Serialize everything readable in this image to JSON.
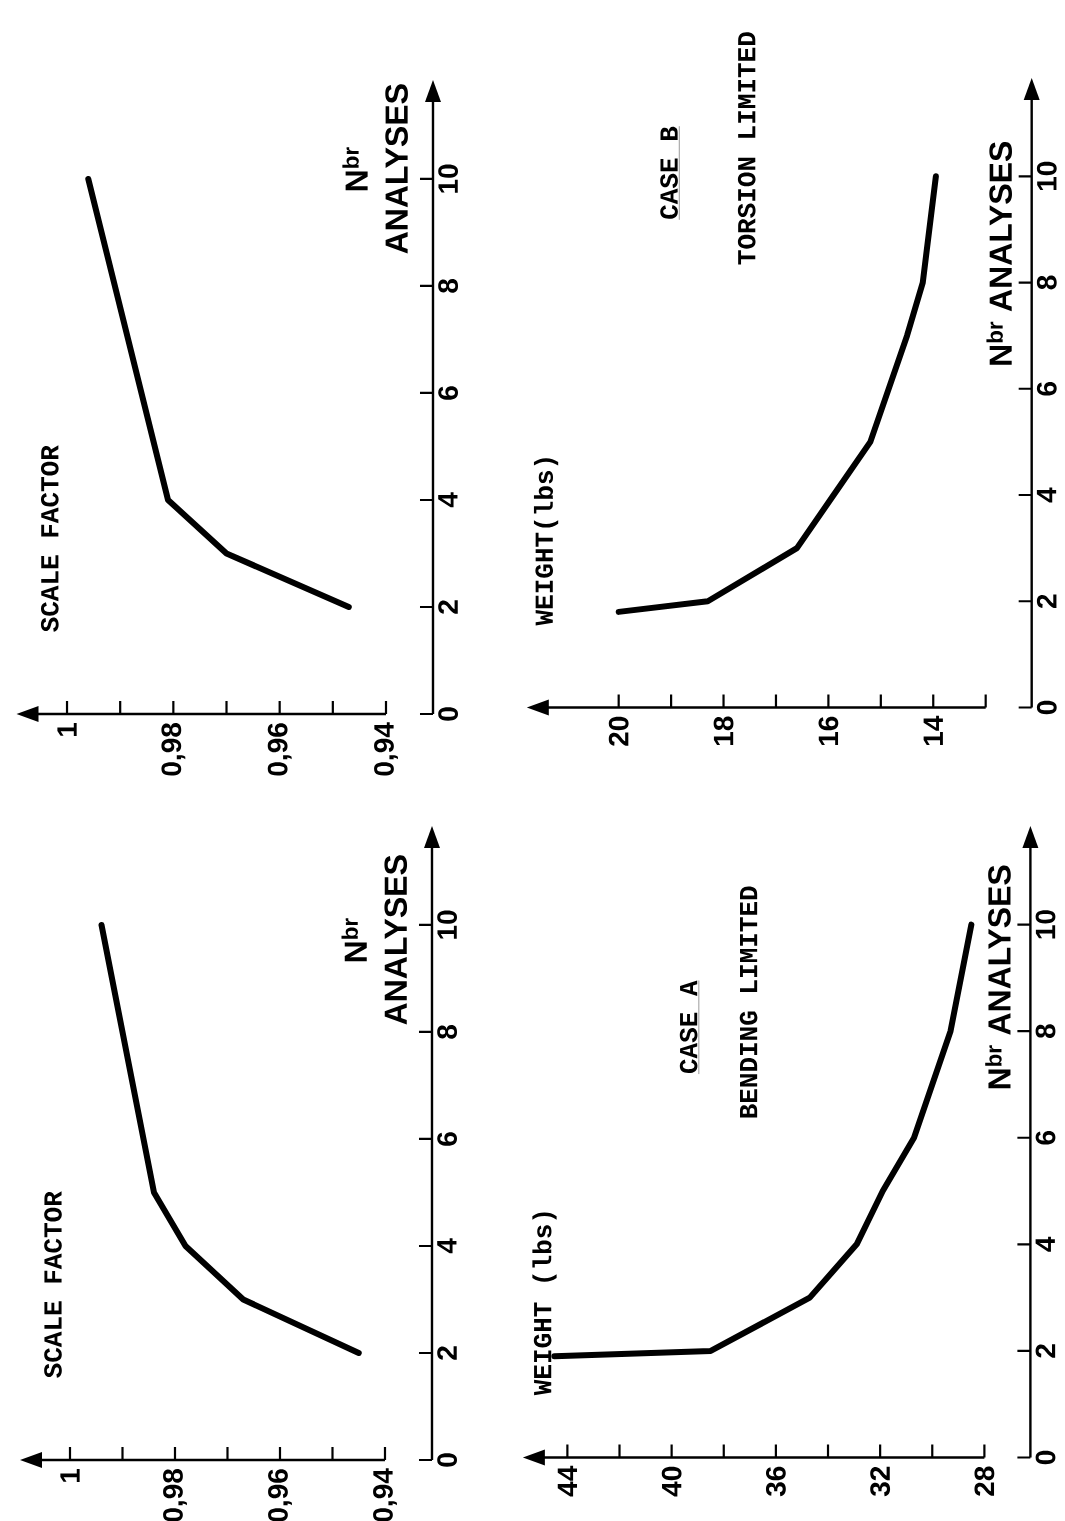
{
  "chart_data": [
    {
      "type": "line",
      "annotations": [
        "SCALE FACTOR"
      ],
      "ylabel": "N$^{br}$ ANALYSES",
      "x": [
        0.947,
        0.97,
        0.981,
        0.996
      ],
      "values": [
        2,
        3,
        4,
        10
      ],
      "color": "#000000",
      "ylim": [
        0,
        11.7
      ],
      "xlim": [
        1.008,
        0.94
      ],
      "yticks": [
        0,
        2,
        4,
        6,
        8,
        10
      ],
      "xticks": [
        {
          "value": 0.94,
          "label": "0,94"
        },
        {
          "value": 0.95,
          "label": null
        },
        {
          "value": 0.96,
          "label": "0,96"
        },
        {
          "value": 0.97,
          "label": null
        },
        {
          "value": 0.98,
          "label": "0,98"
        },
        {
          "value": 0.99,
          "label": null
        },
        1
      ]
    },
    {
      "type": "line",
      "ylabel": "N$^{br}$ ANALYSES",
      "annotations": [
        "WEIGHT(lbs)",
        "CASE B",
        "TORSION LIMITED"
      ],
      "x": [
        20.0,
        18.3,
        16.6,
        15.9,
        15.2,
        14.85,
        14.5,
        14.2,
        13.95
      ],
      "values": [
        1.8,
        2,
        3,
        4,
        5,
        6,
        7,
        8,
        10
      ],
      "color": "#000000",
      "ylim": [
        0,
        11.7
      ],
      "xlim": [
        21.6,
        13
      ],
      "yticks": [
        0,
        2,
        4,
        6,
        8,
        10
      ],
      "xticks": [
        {
          "value": 13,
          "label": null
        },
        14,
        {
          "value": 15,
          "label": null
        },
        16,
        {
          "value": 17,
          "label": null
        },
        18,
        {
          "value": 19,
          "label": null
        },
        20
      ]
    },
    {
      "type": "line",
      "annotations": [
        "SCALE FACTOR"
      ],
      "ylabel": "N$^{br}$ ANALYSES",
      "x": [
        0.945,
        0.967,
        0.978,
        0.984,
        0.994
      ],
      "values": [
        2,
        3,
        4,
        5,
        10
      ],
      "color": "#000000",
      "ylim": [
        0,
        11.7
      ],
      "xlim": [
        1.008,
        0.94
      ],
      "yticks": [
        0,
        2,
        4,
        6,
        8,
        10
      ],
      "xticks": [
        {
          "value": 0.94,
          "label": "0,94"
        },
        {
          "value": 0.95,
          "label": null
        },
        {
          "value": 0.96,
          "label": "0,96"
        },
        {
          "value": 0.97,
          "label": null
        },
        {
          "value": 0.98,
          "label": "0,98"
        },
        {
          "value": 0.99,
          "label": null
        },
        1
      ]
    },
    {
      "type": "line",
      "ylabel": "N$^{br}$ ANALYSES",
      "annotations": [
        "WEIGHT (lbs)",
        "CASE A",
        "BENDING LIMITED"
      ],
      "x": [
        44.5,
        38.5,
        34.7,
        32.9,
        31.9,
        30.7,
        29.3,
        28.5
      ],
      "values": [
        1.9,
        2,
        3,
        4,
        5,
        6,
        8,
        10
      ],
      "color": "#000000",
      "ylim": [
        0,
        11.7
      ],
      "xlim": [
        45.4,
        28
      ],
      "yticks": [
        0,
        2,
        4,
        6,
        8,
        10
      ],
      "xticks": [
        28,
        {
          "value": 30,
          "label": null
        },
        32,
        {
          "value": 34,
          "label": null
        },
        36,
        {
          "value": 38,
          "label": null
        },
        40,
        {
          "value": 42,
          "label": null
        },
        44
      ]
    }
  ]
}
